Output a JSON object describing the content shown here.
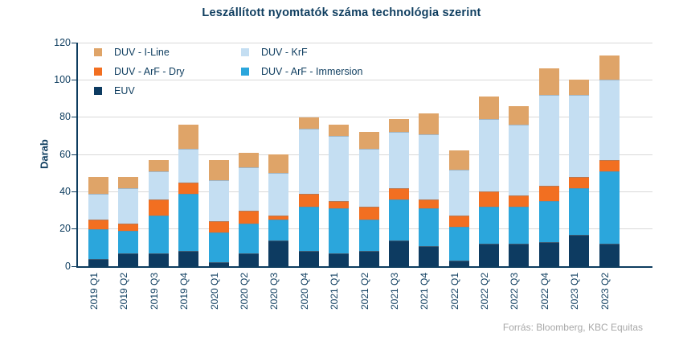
{
  "title": "Leszállított nyomtatók száma technológia szerint",
  "source": "Forrás: Bloomberg,  KBC Equitas",
  "colors": {
    "text_navy": "#0e3d5f",
    "axis": "#0e3d5f",
    "gridline": "#d9d9d9",
    "source_gray": "#a8a8a8"
  },
  "chart_data": {
    "type": "bar",
    "stacked": true,
    "title": "Leszállított nyomtatók száma technológia szerint",
    "xlabel": "",
    "ylabel": "Darab",
    "ylim": [
      0,
      120
    ],
    "ytick_step": 20,
    "grid": true,
    "legend_position": "top-left-inside",
    "categories": [
      "2019 Q1",
      "2019 Q2",
      "2019 Q3",
      "2019 Q4",
      "2020 Q1",
      "2020 Q2",
      "2020 Q3",
      "2020 Q4",
      "2021 Q1",
      "2021 Q2",
      "2021 Q3",
      "2021 Q4",
      "2022 Q1",
      "2022 Q2",
      "2022 Q3",
      "2022 Q4",
      "2023 Q1",
      "2023 Q2"
    ],
    "series": [
      {
        "name": "EUV",
        "color": "#0d3b61",
        "values": [
          4,
          7,
          7,
          8,
          2,
          7,
          14,
          8,
          7,
          8,
          14,
          11,
          3,
          12,
          12,
          13,
          17,
          12
        ]
      },
      {
        "name": "DUV - ArF - Immersion",
        "color": "#2ba6dc",
        "values": [
          16,
          12,
          20,
          31,
          16,
          16,
          11,
          24,
          24,
          17,
          22,
          20,
          18,
          20,
          20,
          22,
          25,
          39
        ]
      },
      {
        "name": "DUV - ArF - Dry",
        "color": "#f26f21",
        "values": [
          5,
          4,
          9,
          6,
          6,
          7,
          2,
          7,
          4,
          7,
          6,
          5,
          6,
          8,
          6,
          8,
          6,
          6
        ]
      },
      {
        "name": "DUV - KrF",
        "color": "#c4def2",
        "values": [
          14,
          19,
          15,
          18,
          22,
          23,
          23,
          35,
          35,
          31,
          30,
          35,
          25,
          39,
          38,
          49,
          44,
          43
        ]
      },
      {
        "name": "DUV - I-Line",
        "color": "#dfa468",
        "values": [
          9,
          6,
          6,
          13,
          11,
          8,
          10,
          6,
          6,
          9,
          7,
          11,
          10,
          12,
          10,
          14,
          8,
          13
        ]
      }
    ],
    "totals": [
      48,
      48,
      57,
      76,
      57,
      61,
      60,
      80,
      76,
      72,
      79,
      82,
      62,
      91,
      86,
      106,
      100,
      113
    ],
    "legend_order": [
      "DUV - I-Line",
      "DUV - KrF",
      "DUV - ArF - Dry",
      "DUV - ArF - Immersion",
      "EUV"
    ]
  }
}
